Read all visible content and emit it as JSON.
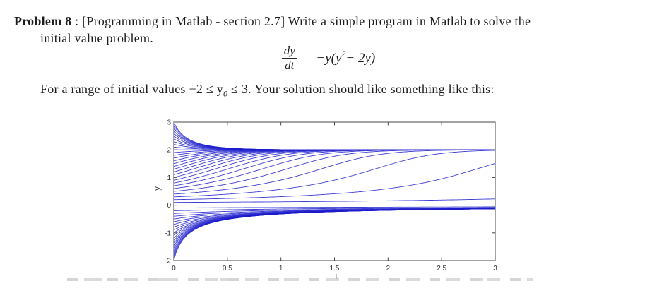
{
  "document": {
    "problem_label": "Problem 8",
    "separator": " : ",
    "line1_rest": "[Programming in Matlab - section 2.7] Write a simple program in Matlab to solve the",
    "line2": "initial value problem.",
    "line3_prefix": "For a range of initial values −2 ≤ y",
    "line3_sub": "0",
    "line3_suffix": " ≤ 3. Your solution should like something like this:",
    "equation": {
      "numerator": "dy",
      "denominator": "dt",
      "equals": "= −y(y",
      "exponent": "2",
      "rhs_tail": " − 2y)"
    }
  },
  "chart_data": {
    "type": "line",
    "title": "",
    "xlabel": "t",
    "ylabel": "y",
    "xlim": [
      0,
      3
    ],
    "ylim": [
      -2,
      3
    ],
    "xticks": [
      0,
      0.5,
      1,
      1.5,
      2,
      2.5,
      3
    ],
    "xtick_labels": [
      "0",
      "0.5",
      "1",
      "1.5",
      "2",
      "2.5",
      "3"
    ],
    "yticks": [
      -2,
      -1,
      0,
      1,
      2,
      3
    ],
    "ytick_labels": [
      "-2",
      "-1",
      "0",
      "1",
      "2",
      "3"
    ],
    "ode": "dy/dt = -y*(y^2 - 2*y)",
    "initial_values": {
      "start": -2,
      "end": 3,
      "step": 0.1
    },
    "equilibria": [
      0,
      2
    ],
    "line_color": "#1c1ccd",
    "line_opacity": 0.85,
    "frame_color": "#444444",
    "tick_label_color": "#333333",
    "grid": false,
    "legend": null
  }
}
